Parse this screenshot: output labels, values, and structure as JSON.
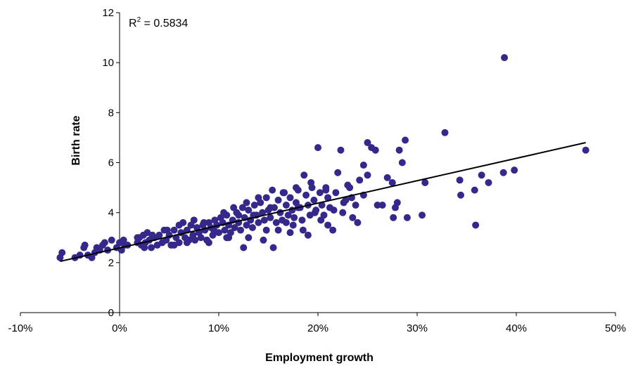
{
  "chart_data": {
    "type": "scatter",
    "xlabel": "Employment growth",
    "ylabel": "Birth rate",
    "xlim": [
      -10,
      50
    ],
    "ylim": [
      0,
      12
    ],
    "x_ticks": [
      "-10%",
      "0%",
      "10%",
      "20%",
      "30%",
      "40%",
      "50%"
    ],
    "x_tick_values": [
      -10,
      0,
      10,
      20,
      30,
      40,
      50
    ],
    "y_ticks": [
      "0",
      "2",
      "4",
      "6",
      "8",
      "10",
      "12"
    ],
    "y_tick_values": [
      0,
      2,
      4,
      6,
      8,
      10,
      12
    ],
    "grid": false,
    "annotation": {
      "r_label": "R",
      "r_sup": "2",
      "r_value": " = 0.5834"
    },
    "trendline": {
      "x": [
        -6,
        47
      ],
      "y": [
        2.05,
        6.8
      ]
    },
    "colors": {
      "points": "#34288a",
      "trendline": "#000000"
    },
    "points": [
      [
        -6.0,
        2.2
      ],
      [
        -5.8,
        2.4
      ],
      [
        -4.5,
        2.2
      ],
      [
        -4.0,
        2.3
      ],
      [
        -3.6,
        2.6
      ],
      [
        -3.5,
        2.7
      ],
      [
        -3.2,
        2.3
      ],
      [
        -2.8,
        2.2
      ],
      [
        -2.5,
        2.4
      ],
      [
        -2.3,
        2.6
      ],
      [
        -2.0,
        2.5
      ],
      [
        -1.7,
        2.7
      ],
      [
        -1.5,
        2.8
      ],
      [
        -1.2,
        2.5
      ],
      [
        -0.8,
        2.9
      ],
      [
        -0.3,
        2.6
      ],
      [
        0.0,
        2.8
      ],
      [
        0.2,
        2.5
      ],
      [
        0.4,
        2.9
      ],
      [
        0.5,
        2.7
      ],
      [
        1.8,
        2.8
      ],
      [
        2.0,
        3.0
      ],
      [
        2.2,
        2.7
      ],
      [
        2.4,
        3.1
      ],
      [
        2.6,
        2.8
      ],
      [
        2.8,
        3.2
      ],
      [
        3.0,
        2.9
      ],
      [
        3.2,
        2.6
      ],
      [
        3.5,
        3.0
      ],
      [
        3.8,
        2.7
      ],
      [
        4.0,
        3.1
      ],
      [
        4.3,
        2.8
      ],
      [
        4.5,
        3.3
      ],
      [
        4.7,
        2.9
      ],
      [
        5.0,
        3.1
      ],
      [
        5.2,
        2.7
      ],
      [
        5.5,
        3.3
      ],
      [
        5.7,
        3.0
      ],
      [
        6.0,
        2.8
      ],
      [
        6.2,
        3.2
      ],
      [
        6.4,
        3.6
      ],
      [
        6.6,
        3.0
      ],
      [
        6.8,
        3.3
      ],
      [
        7.0,
        2.9
      ],
      [
        7.2,
        3.5
      ],
      [
        7.4,
        3.1
      ],
      [
        7.6,
        2.9
      ],
      [
        7.8,
        3.4
      ],
      [
        8.0,
        3.2
      ],
      [
        8.2,
        3.0
      ],
      [
        8.4,
        3.5
      ],
      [
        8.6,
        3.3
      ],
      [
        8.8,
        2.9
      ],
      [
        9.0,
        3.6
      ],
      [
        9.2,
        3.4
      ],
      [
        9.4,
        3.1
      ],
      [
        9.6,
        3.7
      ],
      [
        9.8,
        3.5
      ],
      [
        10.0,
        3.2
      ],
      [
        10.2,
        3.8
      ],
      [
        10.4,
        3.6
      ],
      [
        10.6,
        3.3
      ],
      [
        10.8,
        3.9
      ],
      [
        11.0,
        3.5
      ],
      [
        11.2,
        3.2
      ],
      [
        11.4,
        3.7
      ],
      [
        11.6,
        3.4
      ],
      [
        11.8,
        4.0
      ],
      [
        12.0,
        3.6
      ],
      [
        12.2,
        3.3
      ],
      [
        12.4,
        4.2
      ],
      [
        12.6,
        3.8
      ],
      [
        12.8,
        3.5
      ],
      [
        13.0,
        4.1
      ],
      [
        13.2,
        3.7
      ],
      [
        13.4,
        3.4
      ],
      [
        13.6,
        4.3
      ],
      [
        13.8,
        3.9
      ],
      [
        14.0,
        3.6
      ],
      [
        14.2,
        4.4
      ],
      [
        14.4,
        4.0
      ],
      [
        14.6,
        3.7
      ],
      [
        14.8,
        4.6
      ],
      [
        15.0,
        4.1
      ],
      [
        15.2,
        3.8
      ],
      [
        15.4,
        4.9
      ],
      [
        15.6,
        4.2
      ],
      [
        15.8,
        3.6
      ],
      [
        16.0,
        4.5
      ],
      [
        16.2,
        4.0
      ],
      [
        16.4,
        3.7
      ],
      [
        16.6,
        4.8
      ],
      [
        16.8,
        4.3
      ],
      [
        17.0,
        3.9
      ],
      [
        17.2,
        4.6
      ],
      [
        17.4,
        4.1
      ],
      [
        17.6,
        3.8
      ],
      [
        17.8,
        4.4
      ],
      [
        18.0,
        4.9
      ],
      [
        18.2,
        4.2
      ],
      [
        18.4,
        3.7
      ],
      [
        18.6,
        5.5
      ],
      [
        18.8,
        4.7
      ],
      [
        19.0,
        4.3
      ],
      [
        19.2,
        3.9
      ],
      [
        19.4,
        5.0
      ],
      [
        19.6,
        4.5
      ],
      [
        19.8,
        4.1
      ],
      [
        20.0,
        6.6
      ],
      [
        20.2,
        4.8
      ],
      [
        20.4,
        4.3
      ],
      [
        20.6,
        3.9
      ],
      [
        20.8,
        5.0
      ],
      [
        21.0,
        4.6
      ],
      [
        21.2,
        4.2
      ],
      [
        21.5,
        3.3
      ],
      [
        21.8,
        4.8
      ],
      [
        22.0,
        5.6
      ],
      [
        22.3,
        6.5
      ],
      [
        22.6,
        4.4
      ],
      [
        23.0,
        5.1
      ],
      [
        23.4,
        4.6
      ],
      [
        23.8,
        4.3
      ],
      [
        24.2,
        5.3
      ],
      [
        24.6,
        4.7
      ],
      [
        25.0,
        6.8
      ],
      [
        25.4,
        6.6
      ],
      [
        25.8,
        6.5
      ],
      [
        24.6,
        5.9
      ],
      [
        25.0,
        5.5
      ],
      [
        26.0,
        4.3
      ],
      [
        26.5,
        4.3
      ],
      [
        27.0,
        5.4
      ],
      [
        27.5,
        5.2
      ],
      [
        27.8,
        4.2
      ],
      [
        28.2,
        6.5
      ],
      [
        28.5,
        6.0
      ],
      [
        28.8,
        6.9
      ],
      [
        27.6,
        3.8
      ],
      [
        28.0,
        4.4
      ],
      [
        29.0,
        3.8
      ],
      [
        30.5,
        3.9
      ],
      [
        30.8,
        5.2
      ],
      [
        32.8,
        7.2
      ],
      [
        34.3,
        5.3
      ],
      [
        34.4,
        4.7
      ],
      [
        35.8,
        4.9
      ],
      [
        35.9,
        3.5
      ],
      [
        36.5,
        5.5
      ],
      [
        37.2,
        5.2
      ],
      [
        38.7,
        5.6
      ],
      [
        38.8,
        10.2
      ],
      [
        39.8,
        5.7
      ],
      [
        47.0,
        6.5
      ],
      [
        12.5,
        2.6
      ],
      [
        15.5,
        2.6
      ],
      [
        11.0,
        3.0
      ],
      [
        9.0,
        2.8
      ],
      [
        13.0,
        3.0
      ],
      [
        16.0,
        3.3
      ],
      [
        17.5,
        3.5
      ],
      [
        18.5,
        3.3
      ],
      [
        19.0,
        3.1
      ],
      [
        20.3,
        3.7
      ],
      [
        21.0,
        3.5
      ],
      [
        14.5,
        2.9
      ],
      [
        6.0,
        3.5
      ],
      [
        4.8,
        3.3
      ],
      [
        3.3,
        3.1
      ],
      [
        1.8,
        3.0
      ],
      [
        0.8,
        2.7
      ],
      [
        7.5,
        3.7
      ],
      [
        8.5,
        3.6
      ],
      [
        10.5,
        4.0
      ],
      [
        11.5,
        4.2
      ],
      [
        12.8,
        4.4
      ],
      [
        14.0,
        4.6
      ],
      [
        16.5,
        4.8
      ],
      [
        17.8,
        5.0
      ],
      [
        19.3,
        5.2
      ],
      [
        20.8,
        4.9
      ],
      [
        22.5,
        4.0
      ],
      [
        23.5,
        3.8
      ],
      [
        24.0,
        3.6
      ],
      [
        22.8,
        4.5
      ],
      [
        23.2,
        5.0
      ],
      [
        21.6,
        4.1
      ],
      [
        18.0,
        4.2
      ],
      [
        13.5,
        3.9
      ],
      [
        15.2,
        4.2
      ],
      [
        16.8,
        3.6
      ],
      [
        9.5,
        3.3
      ],
      [
        10.8,
        3.0
      ],
      [
        5.5,
        2.7
      ],
      [
        2.5,
        2.6
      ],
      [
        6.8,
        2.8
      ],
      [
        12.0,
        3.9
      ],
      [
        14.8,
        3.3
      ],
      [
        17.2,
        3.2
      ],
      [
        19.7,
        4.0
      ]
    ]
  }
}
